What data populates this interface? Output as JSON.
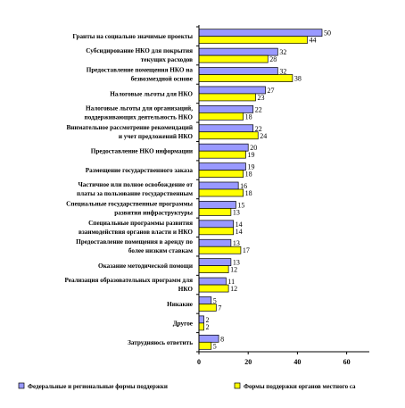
{
  "chart_data": {
    "type": "bar",
    "orientation": "horizontal",
    "categories": [
      [
        "Гранты на социально значимые проекты"
      ],
      [
        "Субсидирование НКО для покрытия",
        "текущих расходов"
      ],
      [
        "Предоставление помещения НКО на",
        "безвозмездной основе"
      ],
      [
        "Налоговые льготы для НКО"
      ],
      [
        "Налоговые льготы для организаций,",
        "поддерживающих деятельность НКО"
      ],
      [
        "Внимательное рассмотрение рекомендаций",
        "и учет предложений НКО"
      ],
      [
        "Предоставление НКО информации"
      ],
      [
        "Размещение государственного заказа"
      ],
      [
        "Частичное или полное освобождение от",
        "платы за пользование государственным"
      ],
      [
        "Специальные государственные программы",
        "развития инфраструктуры"
      ],
      [
        "Специальные программы развития",
        "взаимодействия органов власти и НКО"
      ],
      [
        "Предоставление помещения в аренду по",
        "более низким ставкам"
      ],
      [
        "Оказание методической помощи"
      ],
      [
        "Реализация образовательных программ для",
        "НКО"
      ],
      [
        "Никакие"
      ],
      [
        "Другое"
      ],
      [
        "Затрудняюсь ответить"
      ]
    ],
    "series": [
      {
        "name": "Федеральные и региональные формы поддержки",
        "color": "#9999ff",
        "values": [
          50,
          32,
          32,
          27,
          22,
          22,
          20,
          19,
          16,
          15,
          14,
          13,
          13,
          11,
          5,
          2,
          8
        ]
      },
      {
        "name": "Формы поддержки органов местного са",
        "color": "#ffff00",
        "values": [
          44,
          28,
          38,
          23,
          18,
          24,
          19,
          18,
          18,
          13,
          14,
          17,
          12,
          12,
          7,
          2,
          5
        ]
      }
    ],
    "xlim": [
      0,
      80
    ],
    "xticks": [
      0,
      20,
      40,
      60
    ],
    "grid": false,
    "legend": "bottom"
  }
}
